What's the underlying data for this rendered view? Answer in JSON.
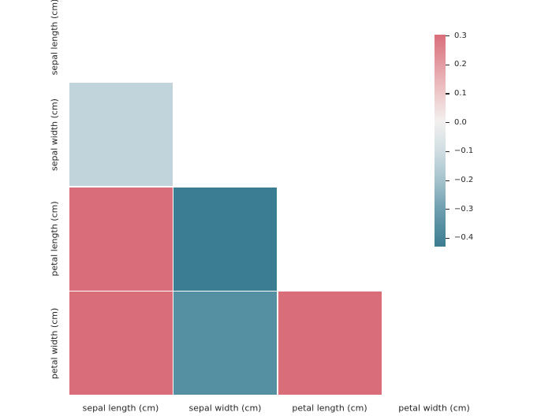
{
  "chart_data": {
    "type": "heatmap",
    "title": "",
    "description": "Correlation heatmap with upper triangle and diagonal masked (white); iris dataset features",
    "row_labels": [
      "sepal length (cm)",
      "sepal width (cm)",
      "petal length (cm)",
      "petal width (cm)"
    ],
    "col_labels": [
      "sepal length (cm)",
      "sepal width (cm)",
      "petal length (cm)",
      "petal width (cm)"
    ],
    "cells": [
      {
        "row": 1,
        "col": 0,
        "value": -0.12,
        "clipped": false,
        "color": "#c1d4db"
      },
      {
        "row": 2,
        "col": 0,
        "value": 0.3,
        "clipped": true,
        "color": "#d96e7a"
      },
      {
        "row": 2,
        "col": 1,
        "value": -0.43,
        "clipped": false,
        "color": "#3b7d92"
      },
      {
        "row": 3,
        "col": 0,
        "value": 0.3,
        "clipped": true,
        "color": "#d96e7a"
      },
      {
        "row": 3,
        "col": 1,
        "value": -0.37,
        "clipped": false,
        "color": "#548fa2"
      },
      {
        "row": 3,
        "col": 2,
        "value": 0.3,
        "clipped": true,
        "color": "#d96e7a"
      }
    ],
    "colorbar": {
      "vmin": -0.43,
      "vmax": 0.3,
      "tick_labels": [
        "0.3",
        "0.2",
        "0.1",
        "0.0",
        "−0.1",
        "−0.2",
        "−0.3",
        "−0.4"
      ],
      "gradient": [
        {
          "pos": 0.0,
          "color": "#d96e7a"
        },
        {
          "pos": 0.14,
          "color": "#e39ba2"
        },
        {
          "pos": 0.27,
          "color": "#eec6c8"
        },
        {
          "pos": 0.41,
          "color": "#f2f0ef"
        },
        {
          "pos": 0.55,
          "color": "#cfdde2"
        },
        {
          "pos": 0.69,
          "color": "#a3c2cc"
        },
        {
          "pos": 0.82,
          "color": "#6f9fb0"
        },
        {
          "pos": 1.0,
          "color": "#3b7c91"
        }
      ]
    },
    "legend_position": "right",
    "grid": false,
    "background": "#ffffff",
    "mask": "upper-triangle-including-diagonal"
  }
}
